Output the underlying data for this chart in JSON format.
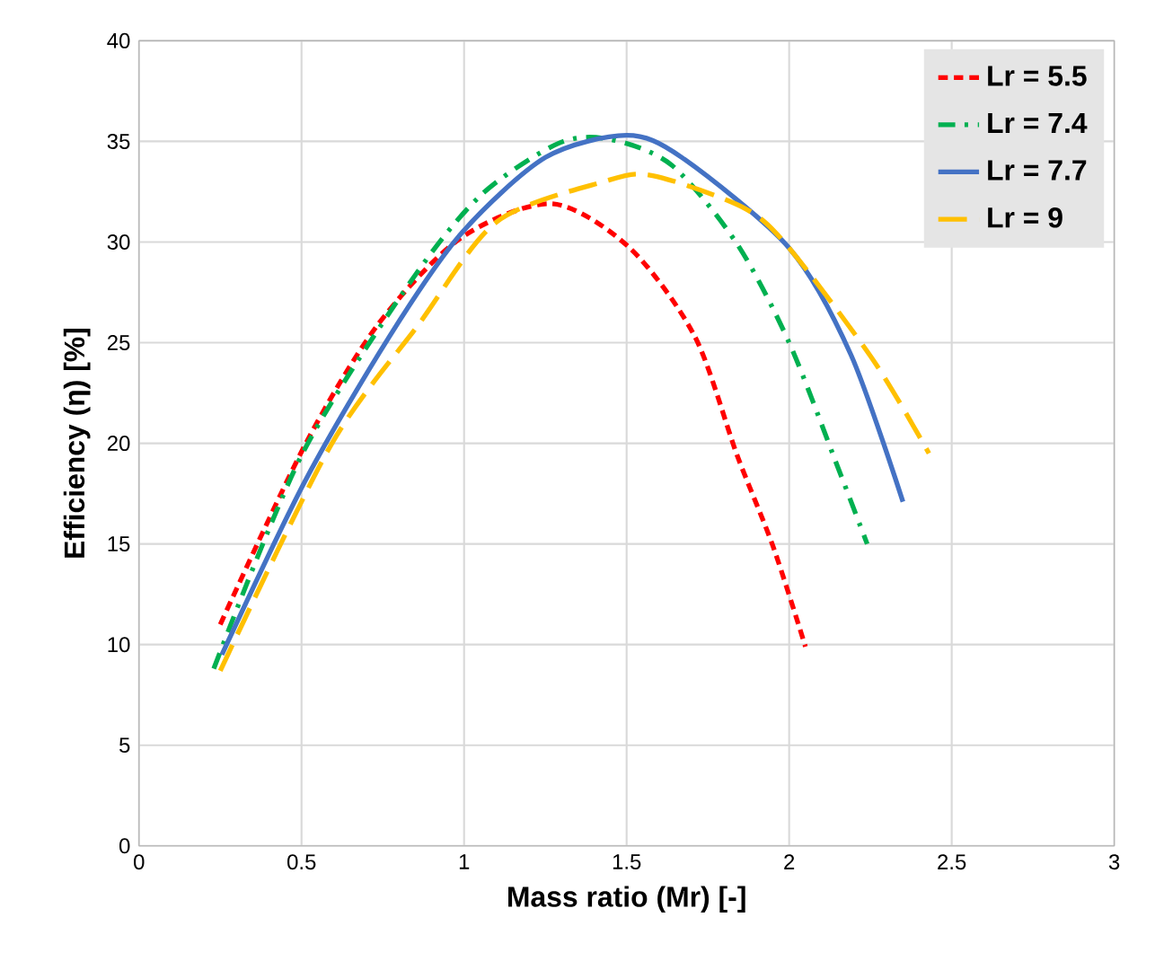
{
  "chart_data": {
    "type": "line",
    "xlabel": "Mass ratio (Mr) [-]",
    "ylabel": "Efficiency (η) [%]",
    "xlim": [
      0,
      3
    ],
    "ylim": [
      0,
      40
    ],
    "xticks": [
      0,
      0.5,
      1,
      1.5,
      2,
      2.5,
      3
    ],
    "yticks": [
      0,
      5,
      10,
      15,
      20,
      25,
      30,
      35,
      40
    ],
    "grid": true,
    "legend": "top right",
    "series": [
      {
        "name": "Lr = 5.5",
        "color": "#ff0000",
        "line_style": "dashed",
        "x": [
          0.25,
          0.51,
          0.735,
          0.99,
          1.27,
          1.51,
          1.71,
          1.84,
          1.95,
          2.05
        ],
        "values": [
          11.0,
          19.9,
          25.9,
          30.2,
          31.9,
          29.7,
          25.3,
          19.4,
          14.9,
          9.9
        ]
      },
      {
        "name": "Lr = 7.4",
        "color": "#00b050",
        "line_style": "dashdot",
        "x": [
          0.23,
          0.5,
          0.83,
          1.05,
          1.29,
          1.45,
          1.64,
          1.84,
          2.0,
          2.15,
          2.24
        ],
        "values": [
          8.8,
          19.4,
          27.9,
          32.3,
          34.9,
          35.1,
          33.8,
          29.9,
          25.0,
          18.8,
          15.0
        ]
      },
      {
        "name": "Lr = 7.7",
        "color": "#4472c4",
        "line_style": "solid",
        "x": [
          0.255,
          0.51,
          0.77,
          0.99,
          1.25,
          1.5,
          1.67,
          2.0,
          2.19,
          2.35
        ],
        "values": [
          9.5,
          18.1,
          25.3,
          30.4,
          34.2,
          35.3,
          34.2,
          29.7,
          24.4,
          17.1
        ]
      },
      {
        "name": "Lr = 9",
        "color": "#ffc000",
        "line_style": "longdash",
        "x": [
          0.25,
          0.59,
          0.86,
          1.1,
          1.43,
          1.58,
          1.86,
          2.0,
          2.26,
          2.43
        ],
        "values": [
          8.7,
          19.9,
          25.9,
          31.0,
          33.0,
          33.3,
          31.7,
          29.7,
          24.1,
          19.5
        ]
      }
    ]
  }
}
